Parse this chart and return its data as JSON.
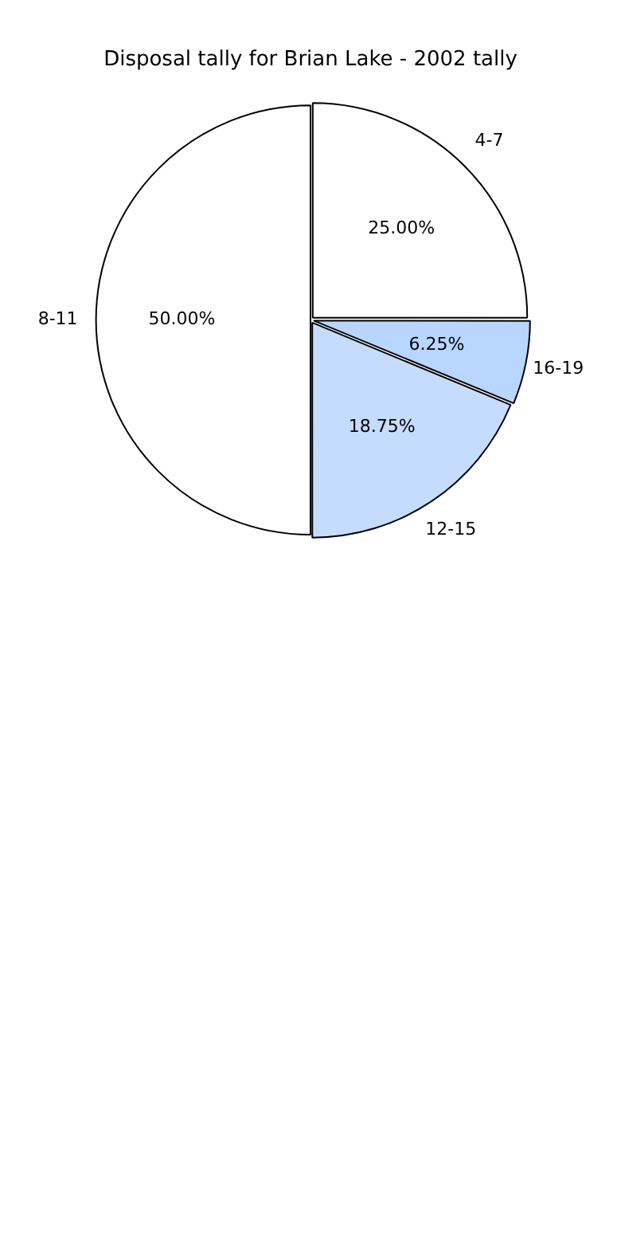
{
  "chart_data": {
    "type": "pie",
    "title": "Disposal tally for Brian Lake - 2002 tally",
    "categories": [
      "4-7",
      "16-19",
      "12-15",
      "8-11"
    ],
    "values": [
      25,
      6.25,
      18.75,
      50
    ],
    "value_labels": [
      "25.00%",
      "6.25%",
      "18.75%",
      "50.00%"
    ],
    "colors": [
      "#ffffff",
      "#b8d6ff",
      "#c6dcff",
      "#ffffff"
    ],
    "legend": false
  }
}
